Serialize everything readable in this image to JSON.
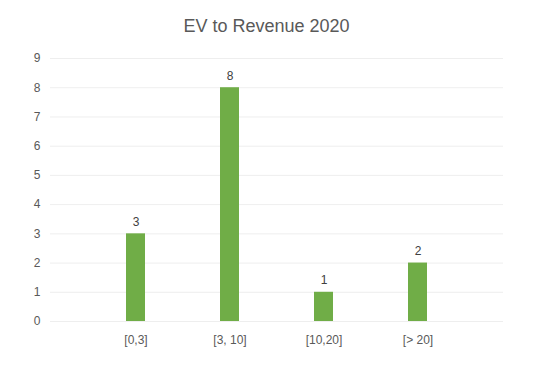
{
  "chart_data": {
    "type": "bar",
    "title": "EV to Revenue 2020",
    "categories": [
      "[0,3]",
      "[3, 10]",
      "[10,20]",
      "[> 20]"
    ],
    "values": [
      3,
      8,
      1,
      2
    ],
    "color": "#70ad47",
    "ylim": [
      0,
      9
    ],
    "yticks": [
      0,
      1,
      2,
      3,
      4,
      5,
      6,
      7,
      8,
      9
    ],
    "grid": true,
    "data_labels": true
  }
}
